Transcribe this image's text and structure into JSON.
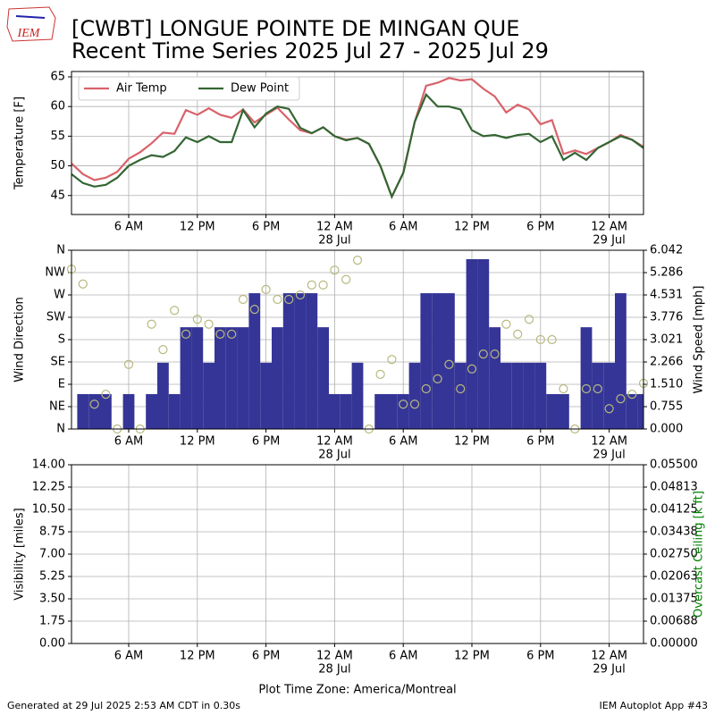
{
  "header": {
    "logo_text": "IEM",
    "title_lines": [
      "[CWBT] LONGUE POINTE DE MINGAN QUE",
      "Recent Time Series 2025 Jul 27 - 2025 Jul 29"
    ]
  },
  "footer": {
    "left": "Generated at 29 Jul 2025 2:53 AM CDT in 0.30s",
    "right": "IEM Autoplot App #43"
  },
  "chart_data": [
    {
      "type": "line",
      "ylabel": "Temperature [F]",
      "x": [
        1,
        2,
        3,
        4,
        5,
        6,
        7,
        8,
        9,
        10,
        11,
        12,
        13,
        14,
        15,
        16,
        17,
        18,
        19,
        20,
        21,
        22,
        23,
        24,
        25,
        26,
        27,
        28,
        29,
        30,
        31,
        32,
        33,
        34,
        35,
        36,
        37,
        38,
        39,
        40,
        41,
        42,
        43,
        44,
        45,
        46,
        47,
        48,
        49,
        50,
        51
      ],
      "xlim": [
        1,
        51
      ],
      "xticks": [
        {
          "value": 6,
          "label": "6 AM"
        },
        {
          "value": 12,
          "label": "12 PM"
        },
        {
          "value": 18,
          "label": "6 PM"
        },
        {
          "value": 24,
          "label": "12 AM"
        },
        {
          "value": 30,
          "label": "6 AM"
        },
        {
          "value": 36,
          "label": "12 PM"
        },
        {
          "value": 42,
          "label": "6 PM"
        },
        {
          "value": 48,
          "label": "12 AM"
        }
      ],
      "xtick_dates": [
        {
          "value": 24,
          "label": "28 Jul"
        },
        {
          "value": 48,
          "label": "29 Jul"
        }
      ],
      "ylim": [
        41.8,
        65.9
      ],
      "yticks": [
        45,
        50,
        55,
        60,
        65
      ],
      "grid": true,
      "legend": "upper left",
      "series": [
        {
          "name": "Air Temp",
          "color": "#d9626a",
          "values": [
            50.4,
            48.6,
            47.6,
            48.0,
            49.0,
            51.2,
            52.3,
            53.8,
            55.6,
            55.4,
            59.4,
            58.6,
            59.7,
            58.6,
            58.1,
            59.5,
            57.3,
            58.6,
            59.8,
            57.8,
            56.0,
            55.5,
            56.5,
            55.0,
            54.4,
            54.7,
            53.7,
            50.0,
            44.8,
            48.8,
            57.4,
            63.5,
            64.0,
            64.8,
            64.4,
            64.6,
            63.0,
            61.7,
            59.0,
            60.3,
            59.5,
            57.0,
            57.7,
            52.0,
            52.6,
            52.0,
            53.0,
            54.0,
            55.2,
            54.4,
            53.2
          ]
        },
        {
          "name": "Dew Point",
          "color": "#336633",
          "values": [
            48.6,
            47.1,
            46.5,
            46.8,
            48.0,
            50.0,
            51.0,
            51.8,
            51.5,
            52.5,
            54.8,
            54.0,
            55.0,
            54.0,
            54.0,
            59.4,
            56.5,
            58.8,
            60.0,
            59.6,
            56.4,
            55.5,
            56.5,
            55.0,
            54.3,
            54.7,
            53.7,
            50.0,
            44.8,
            48.8,
            57.4,
            62.0,
            60.0,
            60.0,
            59.5,
            56.0,
            55.0,
            55.2,
            54.7,
            55.2,
            55.4,
            54.0,
            55.0,
            51.0,
            52.2,
            51.0,
            53.0,
            54.0,
            55.0,
            54.4,
            53.0
          ]
        }
      ]
    },
    {
      "type": "wind",
      "ylabel": "Wind Direction",
      "y2label": "Wind Speed [mph]",
      "x": [
        1,
        2,
        3,
        4,
        5,
        6,
        7,
        8,
        9,
        10,
        11,
        12,
        13,
        14,
        15,
        16,
        17,
        18,
        19,
        20,
        21,
        22,
        23,
        24,
        25,
        26,
        27,
        28,
        29,
        30,
        31,
        32,
        33,
        34,
        35,
        36,
        37,
        38,
        39,
        40,
        41,
        42,
        43,
        44,
        45,
        46,
        47,
        48,
        49,
        50,
        51
      ],
      "xlim": [
        1,
        51
      ],
      "xticks": [
        {
          "value": 6,
          "label": "6 AM"
        },
        {
          "value": 12,
          "label": "12 PM"
        },
        {
          "value": 18,
          "label": "6 PM"
        },
        {
          "value": 24,
          "label": "12 AM"
        },
        {
          "value": 30,
          "label": "6 AM"
        },
        {
          "value": 36,
          "label": "12 PM"
        },
        {
          "value": 42,
          "label": "6 PM"
        },
        {
          "value": 48,
          "label": "12 AM"
        }
      ],
      "xtick_dates": [
        {
          "value": 24,
          "label": "28 Jul"
        },
        {
          "value": 48,
          "label": "29 Jul"
        }
      ],
      "ylim": [
        0,
        360
      ],
      "yticks": [
        {
          "value": 0,
          "label": "N"
        },
        {
          "value": 45,
          "label": "NE"
        },
        {
          "value": 90,
          "label": "E"
        },
        {
          "value": 135,
          "label": "SE"
        },
        {
          "value": 180,
          "label": "S"
        },
        {
          "value": 225,
          "label": "SW"
        },
        {
          "value": 270,
          "label": "W"
        },
        {
          "value": 315,
          "label": "NW"
        },
        {
          "value": 360,
          "label": "N"
        }
      ],
      "y2lim": [
        0,
        6.042
      ],
      "y2ticks": [
        {
          "value": 0,
          "label": "0.000"
        },
        {
          "value": 0.755,
          "label": "0.755"
        },
        {
          "value": 1.51,
          "label": "1.510"
        },
        {
          "value": 2.266,
          "label": "2.266"
        },
        {
          "value": 3.021,
          "label": "3.021"
        },
        {
          "value": 3.776,
          "label": "3.776"
        },
        {
          "value": 4.531,
          "label": "4.531"
        },
        {
          "value": 5.286,
          "label": "5.286"
        },
        {
          "value": 6.042,
          "label": "6.042"
        }
      ],
      "grid": true,
      "speed": {
        "color": "#353597",
        "axis": "y2",
        "values": [
          0,
          1.18,
          1.18,
          1.18,
          0,
          1.18,
          0,
          1.18,
          2.24,
          1.18,
          3.44,
          3.44,
          2.24,
          3.44,
          3.44,
          3.44,
          4.59,
          2.24,
          3.44,
          4.59,
          4.59,
          4.59,
          3.44,
          1.18,
          1.18,
          2.24,
          0,
          1.18,
          1.18,
          1.18,
          2.24,
          4.59,
          4.59,
          4.59,
          2.24,
          5.74,
          5.74,
          3.44,
          2.24,
          2.24,
          2.24,
          2.24,
          1.18,
          1.18,
          0,
          3.44,
          2.24,
          2.24,
          4.59,
          1.18,
          1.18
        ]
      },
      "direction": {
        "color": "#b8b97f",
        "values": [
          322,
          292,
          50,
          70,
          0,
          130,
          0,
          211,
          160,
          239,
          191,
          221,
          211,
          191,
          191,
          261,
          241,
          281,
          261,
          261,
          270,
          290,
          290,
          320,
          301,
          340,
          0,
          110,
          140,
          50,
          50,
          81,
          101,
          130,
          81,
          121,
          151,
          151,
          211,
          191,
          221,
          180,
          180,
          81,
          0,
          81,
          81,
          41,
          61,
          70,
          92
        ]
      }
    },
    {
      "type": "line",
      "ylabel": "Visibility [miles]",
      "y2label": "Overcast Ceiling [k ft]",
      "y2label_color": "#008000",
      "xlabel": "Plot Time Zone: America/Montreal",
      "xlim": [
        1,
        51
      ],
      "xticks": [
        {
          "value": 6,
          "label": "6 AM"
        },
        {
          "value": 12,
          "label": "12 PM"
        },
        {
          "value": 18,
          "label": "6 PM"
        },
        {
          "value": 24,
          "label": "12 AM"
        },
        {
          "value": 30,
          "label": "6 AM"
        },
        {
          "value": 36,
          "label": "12 PM"
        },
        {
          "value": 42,
          "label": "6 PM"
        },
        {
          "value": 48,
          "label": "12 AM"
        }
      ],
      "xtick_dates": [
        {
          "value": 24,
          "label": "28 Jul"
        },
        {
          "value": 48,
          "label": "29 Jul"
        }
      ],
      "ylim": [
        0,
        14
      ],
      "yticks": [
        {
          "value": 0,
          "label": "0.00"
        },
        {
          "value": 1.75,
          "label": "1.75"
        },
        {
          "value": 3.5,
          "label": "3.50"
        },
        {
          "value": 5.25,
          "label": "5.25"
        },
        {
          "value": 7,
          "label": "7.00"
        },
        {
          "value": 8.75,
          "label": "8.75"
        },
        {
          "value": 10.5,
          "label": "10.50"
        },
        {
          "value": 12.25,
          "label": "12.25"
        },
        {
          "value": 14,
          "label": "14.00"
        }
      ],
      "y2lim": [
        0,
        0.055
      ],
      "y2ticks": [
        {
          "value": 0,
          "label": "0.00000"
        },
        {
          "value": 0.006875,
          "label": "0.00688"
        },
        {
          "value": 0.01375,
          "label": "0.01375"
        },
        {
          "value": 0.020625,
          "label": "0.02063"
        },
        {
          "value": 0.0275,
          "label": "0.02750"
        },
        {
          "value": 0.034375,
          "label": "0.03438"
        },
        {
          "value": 0.04125,
          "label": "0.04125"
        },
        {
          "value": 0.048125,
          "label": "0.04813"
        },
        {
          "value": 0.055,
          "label": "0.05500"
        }
      ],
      "grid": true,
      "series": []
    }
  ]
}
